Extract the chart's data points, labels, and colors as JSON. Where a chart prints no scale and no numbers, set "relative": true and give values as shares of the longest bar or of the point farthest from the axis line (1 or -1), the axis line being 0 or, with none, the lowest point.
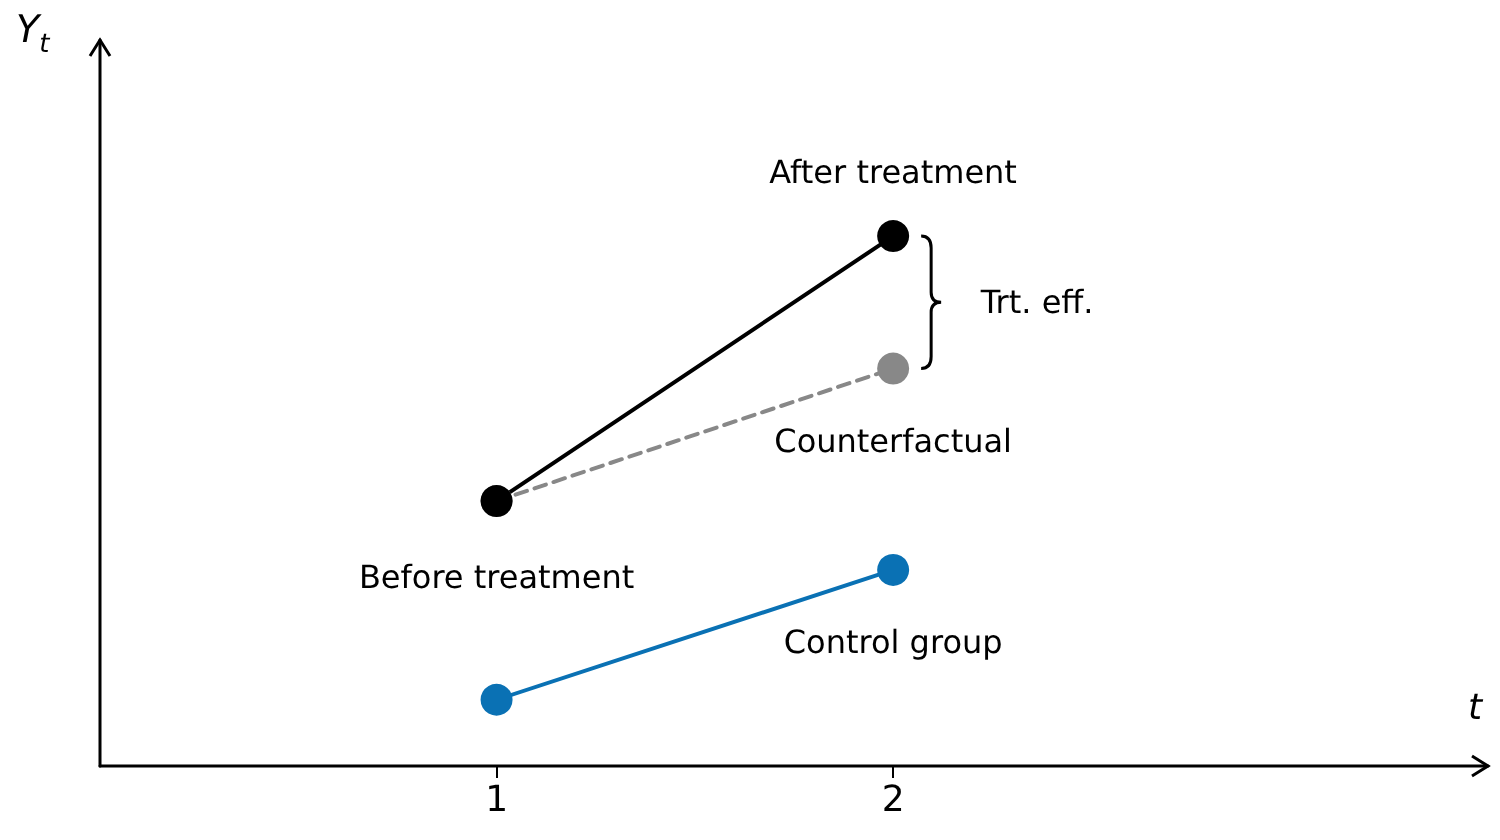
{
  "chart_data": {
    "type": "line",
    "relative": true,
    "xlabel": "t",
    "ylabel": "Y$_{t}$",
    "xlim": [
      0,
      3.5
    ],
    "xticks": [
      1,
      2
    ],
    "x": [
      1,
      2
    ],
    "marker": "circle",
    "grid": false,
    "series": [
      {
        "color": "#888888",
        "line_style": "dashed",
        "values": [
          0.5,
          0.75
        ]
      },
      {
        "color": "#000000",
        "line_style": "solid",
        "values": [
          0.5,
          1
        ]
      },
      {
        "color": "#0a71b4",
        "line_style": "solid",
        "values": [
          0.125,
          0.37
        ]
      }
    ],
    "annotations": [
      "After treatment",
      "Trt. eff.",
      "Counterfactual",
      "Before treatment",
      "Control group"
    ]
  }
}
